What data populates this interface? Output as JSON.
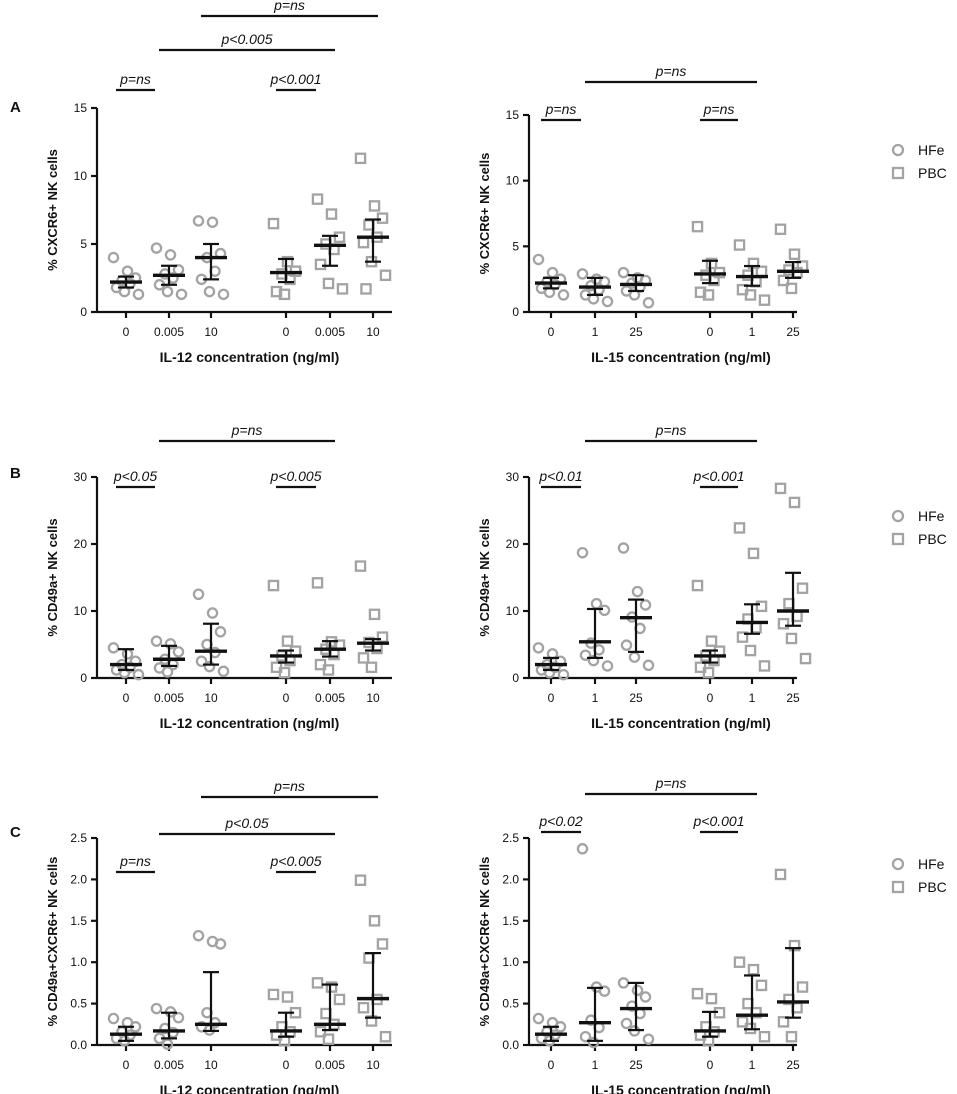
{
  "legend": {
    "items": [
      {
        "label": "HFe",
        "marker": "circle"
      },
      {
        "label": "PBC",
        "marker": "square"
      }
    ],
    "color": "#a3a3a3"
  },
  "chart_data": [
    {
      "id": "A-left",
      "panel": "A",
      "type": "scatter",
      "ylabel": "% CXCR6+ NK cells",
      "xlabel": "IL-12 concentration (ng/ml)",
      "ylim": [
        0,
        15
      ],
      "yticks": [
        0,
        5,
        10,
        15
      ],
      "groups": [
        {
          "tick": "0",
          "series": "HFe",
          "median": 2.2,
          "lo": 1.8,
          "hi": 2.6,
          "points": [
            4.0,
            3.0,
            2.5,
            2.3,
            2.1,
            1.8,
            1.5,
            1.3
          ]
        },
        {
          "tick": "0.005",
          "series": "HFe",
          "median": 2.7,
          "lo": 2.0,
          "hi": 3.4,
          "points": [
            4.7,
            4.2,
            3.1,
            2.8,
            2.5,
            2.0,
            1.5,
            1.3
          ]
        },
        {
          "tick": "10",
          "series": "HFe",
          "median": 4.0,
          "lo": 2.4,
          "hi": 5.0,
          "points": [
            6.7,
            6.6,
            4.3,
            4.0,
            3.0,
            2.4,
            1.5,
            1.3
          ]
        },
        {
          "tick": "0",
          "series": "PBC",
          "median": 2.9,
          "lo": 2.2,
          "hi": 3.9,
          "points": [
            6.5,
            3.7,
            3.0,
            2.8,
            2.4,
            1.5,
            1.3
          ]
        },
        {
          "tick": "0.005",
          "series": "PBC",
          "median": 4.9,
          "lo": 3.4,
          "hi": 5.6,
          "points": [
            8.3,
            7.2,
            5.5,
            5.0,
            4.6,
            3.5,
            2.1,
            1.7
          ]
        },
        {
          "tick": "10",
          "series": "PBC",
          "median": 5.5,
          "lo": 3.7,
          "hi": 6.8,
          "points": [
            11.3,
            7.8,
            6.9,
            6.4,
            5.5,
            5.1,
            3.7,
            2.7,
            1.7
          ]
        }
      ],
      "annotations": [
        {
          "text": "p=ns",
          "from": 3,
          "to": 6,
          "level": 3
        },
        {
          "text": "p<0.005",
          "from": 2,
          "to": 5,
          "level": 2
        },
        {
          "text": "p=ns",
          "from": 1,
          "to": 2,
          "level": 1
        },
        {
          "text": "p<0.001",
          "from": 4,
          "to": 5,
          "level": 1
        }
      ]
    },
    {
      "id": "A-right",
      "panel": "A",
      "type": "scatter",
      "ylabel": "% CXCR6+ NK cells",
      "xlabel": "IL-15 concentration (ng/ml)",
      "ylim": [
        0,
        15
      ],
      "yticks": [
        0,
        5,
        10,
        15
      ],
      "groups": [
        {
          "tick": "0",
          "series": "HFe",
          "median": 2.2,
          "lo": 1.8,
          "hi": 2.6,
          "points": [
            4.0,
            3.0,
            2.5,
            2.3,
            2.1,
            1.8,
            1.5,
            1.3
          ]
        },
        {
          "tick": "1",
          "series": "HFe",
          "median": 1.9,
          "lo": 1.3,
          "hi": 2.6,
          "points": [
            2.9,
            2.5,
            2.3,
            2.0,
            1.7,
            1.3,
            1.0,
            0.8
          ]
        },
        {
          "tick": "25",
          "series": "HFe",
          "median": 2.1,
          "lo": 1.6,
          "hi": 2.8,
          "points": [
            3.0,
            2.6,
            2.4,
            2.2,
            1.9,
            1.6,
            1.3,
            0.7
          ]
        },
        {
          "tick": "0",
          "series": "PBC",
          "median": 2.9,
          "lo": 2.2,
          "hi": 3.9,
          "points": [
            6.5,
            3.7,
            3.0,
            2.8,
            2.4,
            1.5,
            1.3
          ]
        },
        {
          "tick": "1",
          "series": "PBC",
          "median": 2.7,
          "lo": 2.0,
          "hi": 3.5,
          "points": [
            5.1,
            3.7,
            3.1,
            2.8,
            2.3,
            1.7,
            1.3,
            0.9
          ]
        },
        {
          "tick": "25",
          "series": "PBC",
          "median": 3.1,
          "lo": 2.6,
          "hi": 3.8,
          "points": [
            6.3,
            4.4,
            3.5,
            3.2,
            3.0,
            2.4,
            1.8
          ]
        }
      ],
      "annotations": [
        {
          "text": "p=ns",
          "from": 2,
          "to": 5,
          "level": 2
        },
        {
          "text": "p=ns",
          "from": 1,
          "to": 2,
          "level": 1
        },
        {
          "text": "p=ns",
          "from": 4,
          "to": 5,
          "level": 1
        }
      ]
    },
    {
      "id": "B-left",
      "panel": "B",
      "type": "scatter",
      "ylabel": "% CD49a+ NK cells",
      "xlabel": "IL-12 concentration (ng/ml)",
      "ylim": [
        0,
        30
      ],
      "yticks": [
        0,
        10,
        20,
        30
      ],
      "groups": [
        {
          "tick": "0",
          "series": "HFe",
          "median": 2.0,
          "lo": 1.2,
          "hi": 4.3,
          "points": [
            4.5,
            3.6,
            2.5,
            2.0,
            1.6,
            1.2,
            0.8,
            0.5
          ]
        },
        {
          "tick": "0.005",
          "series": "HFe",
          "median": 2.8,
          "lo": 1.8,
          "hi": 4.8,
          "points": [
            5.5,
            5.1,
            3.9,
            2.8,
            2.0,
            1.5,
            0.9
          ]
        },
        {
          "tick": "10",
          "series": "HFe",
          "median": 4.0,
          "lo": 2.0,
          "hi": 8.1,
          "points": [
            12.5,
            9.7,
            6.9,
            5.0,
            3.8,
            2.5,
            1.7,
            1.0
          ]
        },
        {
          "tick": "0",
          "series": "PBC",
          "median": 3.3,
          "lo": 2.3,
          "hi": 4.1,
          "points": [
            13.8,
            5.5,
            4.0,
            3.3,
            2.6,
            1.6,
            0.8
          ]
        },
        {
          "tick": "0.005",
          "series": "PBC",
          "median": 4.3,
          "lo": 3.2,
          "hi": 5.5,
          "points": [
            14.2,
            5.4,
            4.9,
            4.3,
            3.5,
            2.0,
            1.2
          ]
        },
        {
          "tick": "10",
          "series": "PBC",
          "median": 5.2,
          "lo": 4.1,
          "hi": 5.8,
          "points": [
            16.7,
            9.5,
            6.1,
            5.3,
            4.4,
            3.0,
            1.6
          ]
        }
      ],
      "annotations": [
        {
          "text": "p=ns",
          "from": 2,
          "to": 5,
          "level": 2
        },
        {
          "text": "p<0.05",
          "from": 1,
          "to": 2,
          "level": 1
        },
        {
          "text": "p<0.005",
          "from": 4,
          "to": 5,
          "level": 1
        }
      ]
    },
    {
      "id": "B-right",
      "panel": "B",
      "type": "scatter",
      "ylabel": "% CD49a+ NK cells",
      "xlabel": "IL-15 concentration (ng/ml)",
      "ylim": [
        0,
        30
      ],
      "yticks": [
        0,
        10,
        20,
        30
      ],
      "groups": [
        {
          "tick": "0",
          "series": "HFe",
          "median": 2.0,
          "lo": 1.2,
          "hi": 3.0,
          "points": [
            4.5,
            3.6,
            2.5,
            2.0,
            1.6,
            1.2,
            0.8,
            0.5
          ]
        },
        {
          "tick": "1",
          "series": "HFe",
          "median": 5.4,
          "lo": 3.0,
          "hi": 10.3,
          "points": [
            18.7,
            11.1,
            10.1,
            5.2,
            4.2,
            3.4,
            2.6,
            1.8
          ]
        },
        {
          "tick": "25",
          "series": "HFe",
          "median": 9.0,
          "lo": 3.9,
          "hi": 11.7,
          "points": [
            19.4,
            12.9,
            10.9,
            9.1,
            7.4,
            4.9,
            3.1,
            1.9
          ]
        },
        {
          "tick": "0",
          "series": "PBC",
          "median": 3.3,
          "lo": 2.3,
          "hi": 4.1,
          "points": [
            13.8,
            5.5,
            4.0,
            3.3,
            2.6,
            1.6,
            0.8
          ]
        },
        {
          "tick": "1",
          "series": "PBC",
          "median": 8.3,
          "lo": 6.6,
          "hi": 11.0,
          "points": [
            22.4,
            18.6,
            10.7,
            8.8,
            7.5,
            6.1,
            4.1,
            1.8
          ]
        },
        {
          "tick": "25",
          "series": "PBC",
          "median": 10.0,
          "lo": 7.8,
          "hi": 15.7,
          "points": [
            28.3,
            26.2,
            13.4,
            11.1,
            9.2,
            8.1,
            5.9,
            2.9
          ]
        }
      ],
      "annotations": [
        {
          "text": "p=ns",
          "from": 2,
          "to": 5,
          "level": 2
        },
        {
          "text": "p<0.01",
          "from": 1,
          "to": 2,
          "level": 1
        },
        {
          "text": "p<0.001",
          "from": 4,
          "to": 5,
          "level": 1
        }
      ]
    },
    {
      "id": "C-left",
      "panel": "C",
      "type": "scatter",
      "ylabel": "% CD49a+CXCR6+ NK cells",
      "xlabel": "IL-12 concentration (ng/ml)",
      "ylim": [
        0,
        2.5
      ],
      "yticks": [
        0,
        0.5,
        1.0,
        1.5,
        2.0,
        2.5
      ],
      "groups": [
        {
          "tick": "0",
          "series": "HFe",
          "median": 0.13,
          "lo": 0.05,
          "hi": 0.22,
          "points": [
            0.32,
            0.27,
            0.22,
            0.16,
            0.12,
            0.08,
            0.05
          ]
        },
        {
          "tick": "0.005",
          "series": "HFe",
          "median": 0.17,
          "lo": 0.08,
          "hi": 0.39,
          "points": [
            0.44,
            0.4,
            0.33,
            0.2,
            0.15,
            0.08,
            0.01
          ]
        },
        {
          "tick": "10",
          "series": "HFe",
          "median": 0.25,
          "lo": 0.17,
          "hi": 0.88,
          "points": [
            1.32,
            1.25,
            1.22,
            0.39,
            0.27,
            0.22,
            0.18
          ]
        },
        {
          "tick": "0",
          "series": "PBC",
          "median": 0.17,
          "lo": 0.1,
          "hi": 0.39,
          "points": [
            0.61,
            0.58,
            0.39,
            0.22,
            0.16,
            0.12,
            0.05
          ]
        },
        {
          "tick": "0.005",
          "series": "PBC",
          "median": 0.25,
          "lo": 0.18,
          "hi": 0.73,
          "points": [
            0.75,
            0.7,
            0.55,
            0.38,
            0.25,
            0.16,
            0.07
          ]
        },
        {
          "tick": "10",
          "series": "PBC",
          "median": 0.56,
          "lo": 0.33,
          "hi": 1.11,
          "points": [
            1.99,
            1.5,
            1.22,
            1.05,
            0.55,
            0.45,
            0.29,
            0.1
          ]
        }
      ],
      "annotations": [
        {
          "text": "p=ns",
          "from": 3,
          "to": 6,
          "level": 3
        },
        {
          "text": "p<0.05",
          "from": 2,
          "to": 5,
          "level": 2
        },
        {
          "text": "p=ns",
          "from": 1,
          "to": 2,
          "level": 1
        },
        {
          "text": "p<0.005",
          "from": 4,
          "to": 5,
          "level": 1
        }
      ]
    },
    {
      "id": "C-right",
      "panel": "C",
      "type": "scatter",
      "ylabel": "% CD49a+CXCR6+ NK cells",
      "xlabel": "IL-15 concentration (ng/ml)",
      "ylim": [
        0,
        2.5
      ],
      "yticks": [
        0,
        0.5,
        1.0,
        1.5,
        2.0,
        2.5
      ],
      "groups": [
        {
          "tick": "0",
          "series": "HFe",
          "median": 0.13,
          "lo": 0.05,
          "hi": 0.22,
          "points": [
            0.32,
            0.27,
            0.22,
            0.16,
            0.12,
            0.08,
            0.05
          ]
        },
        {
          "tick": "1",
          "series": "HFe",
          "median": 0.27,
          "lo": 0.05,
          "hi": 0.69,
          "points": [
            2.37,
            0.7,
            0.65,
            0.3,
            0.21,
            0.1,
            0.03
          ]
        },
        {
          "tick": "25",
          "series": "HFe",
          "median": 0.44,
          "lo": 0.18,
          "hi": 0.75,
          "points": [
            0.75,
            0.66,
            0.58,
            0.47,
            0.38,
            0.26,
            0.17,
            0.07
          ]
        },
        {
          "tick": "0",
          "series": "PBC",
          "median": 0.17,
          "lo": 0.1,
          "hi": 0.4,
          "points": [
            0.62,
            0.56,
            0.39,
            0.22,
            0.16,
            0.12,
            0.05
          ]
        },
        {
          "tick": "1",
          "series": "PBC",
          "median": 0.36,
          "lo": 0.19,
          "hi": 0.84,
          "points": [
            1.0,
            0.91,
            0.72,
            0.5,
            0.39,
            0.28,
            0.2,
            0.1
          ]
        },
        {
          "tick": "25",
          "series": "PBC",
          "median": 0.52,
          "lo": 0.33,
          "hi": 1.17,
          "points": [
            2.06,
            1.2,
            0.7,
            0.55,
            0.45,
            0.28,
            0.1
          ]
        }
      ],
      "annotations": [
        {
          "text": "p=ns",
          "from": 2,
          "to": 5,
          "level": 2
        },
        {
          "text": "p<0.02",
          "from": 1,
          "to": 2,
          "level": 1
        },
        {
          "text": "p<0.001",
          "from": 4,
          "to": 5,
          "level": 1
        }
      ]
    }
  ],
  "panel_labels": [
    "A",
    "B",
    "C"
  ]
}
